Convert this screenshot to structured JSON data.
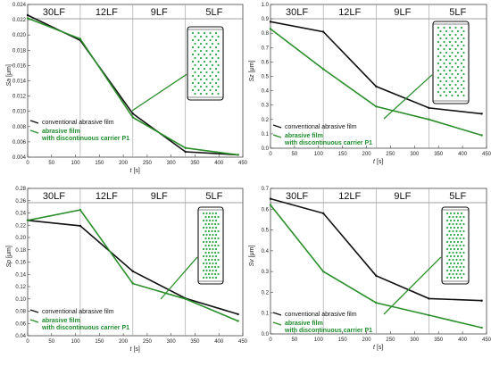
{
  "colors": {
    "conventional": "#111111",
    "p1": "#2a8f2a",
    "dot": "#2fa84a",
    "frame": "#444444",
    "stage_line": "#9a9a9a"
  },
  "chart_data": [
    {
      "id": "sa",
      "type": "line",
      "ylabel_var": "Sa",
      "ylabel_unit": "[μm]",
      "xlabel_var": "t",
      "xlabel_unit": "[s]",
      "xlim": [
        0,
        450
      ],
      "ylim": [
        0.004,
        0.024
      ],
      "xticks": [
        "0",
        "50",
        "100",
        "150",
        "200",
        "250",
        "300",
        "350",
        "400",
        "450"
      ],
      "yticks": [
        "0.004",
        "0.006",
        "0.008",
        "0.010",
        "0.012",
        "0.014",
        "0.016",
        "0.018",
        "0.020",
        "0.022",
        "0.024"
      ],
      "stages": [
        "30LF",
        "12LF",
        "9LF",
        "5LF"
      ],
      "stage_bounds": [
        0,
        110,
        220,
        330,
        450
      ],
      "legend_conventional": "conventional abrasive film",
      "legend_p1_line1": "abrasive film",
      "legend_p1_line2": "with discontinuous carrier P1",
      "series": [
        {
          "key": "conventional",
          "x": [
            0,
            110,
            220,
            330,
            440
          ],
          "y": [
            0.0226,
            0.0193,
            0.0097,
            0.0047,
            0.0043
          ]
        },
        {
          "key": "p1",
          "x": [
            0,
            110,
            220,
            330,
            440
          ],
          "y": [
            0.0222,
            0.0195,
            0.0092,
            0.0052,
            0.0043
          ]
        }
      ]
    },
    {
      "id": "sz",
      "type": "line",
      "ylabel_var": "Sz",
      "ylabel_unit": "[μm]",
      "xlabel_var": "t",
      "xlabel_unit": "[s]",
      "xlim": [
        0,
        450
      ],
      "ylim": [
        0,
        1.0
      ],
      "xticks": [
        "0",
        "50",
        "100",
        "150",
        "200",
        "250",
        "300",
        "350",
        "400",
        "450"
      ],
      "yticks": [
        "0.0",
        "0.1",
        "0.2",
        "0.3",
        "0.4",
        "0.5",
        "0.6",
        "0.7",
        "0.8",
        "0.9",
        "1.0"
      ],
      "stages": [
        "30LF",
        "12LF",
        "9LF",
        "5LF"
      ],
      "stage_bounds": [
        0,
        110,
        220,
        330,
        450
      ],
      "legend_conventional": "conventional abrasive film",
      "legend_p1_line1": "abrasive film",
      "legend_p1_line2": "with discontinuous carrier P1",
      "series": [
        {
          "key": "conventional",
          "x": [
            0,
            110,
            220,
            330,
            440
          ],
          "y": [
            0.88,
            0.81,
            0.43,
            0.28,
            0.24
          ]
        },
        {
          "key": "p1",
          "x": [
            0,
            110,
            220,
            330,
            440
          ],
          "y": [
            0.83,
            0.55,
            0.29,
            0.2,
            0.09
          ]
        }
      ]
    },
    {
      "id": "sp",
      "type": "line",
      "ylabel_var": "Sp",
      "ylabel_unit": "[μm]",
      "xlabel_var": "t",
      "xlabel_unit": "[s]",
      "xlim": [
        0,
        450
      ],
      "ylim": [
        0.04,
        0.28
      ],
      "xticks": [
        "0",
        "50",
        "100",
        "150",
        "200",
        "250",
        "300",
        "350",
        "400",
        "450"
      ],
      "yticks": [
        "0.04",
        "0.06",
        "0.08",
        "0.10",
        "0.12",
        "0.14",
        "0.16",
        "0.18",
        "0.20",
        "0.22",
        "0.24",
        "0.26",
        "0.28"
      ],
      "stages": [
        "30LF",
        "12LF",
        "9LF",
        "5LF"
      ],
      "stage_bounds": [
        0,
        110,
        220,
        330,
        450
      ],
      "legend_conventional": "conventional abrasive film",
      "legend_p1_line1": "abrasive film",
      "legend_p1_line2": "with discontinuous carrier P1",
      "series": [
        {
          "key": "conventional",
          "x": [
            0,
            110,
            220,
            330,
            440
          ],
          "y": [
            0.228,
            0.219,
            0.145,
            0.101,
            0.075
          ]
        },
        {
          "key": "p1",
          "x": [
            0,
            110,
            220,
            330,
            440
          ],
          "y": [
            0.228,
            0.245,
            0.125,
            0.1,
            0.064
          ]
        }
      ]
    },
    {
      "id": "sv",
      "type": "line",
      "ylabel_var": "Sv",
      "ylabel_unit": "[μm]",
      "xlabel_var": "t",
      "xlabel_unit": "[s]",
      "xlim": [
        0,
        450
      ],
      "ylim": [
        0,
        0.7
      ],
      "xticks": [
        "0",
        "50",
        "100",
        "150",
        "200",
        "250",
        "300",
        "350",
        "400",
        "450"
      ],
      "yticks": [
        "0.0",
        "0.1",
        "0.2",
        "0.3",
        "0.4",
        "0.5",
        "0.6",
        "0.7"
      ],
      "stages": [
        "30LF",
        "12LF",
        "9LF",
        "5LF"
      ],
      "stage_bounds": [
        0,
        110,
        220,
        330,
        450
      ],
      "legend_conventional": "conventional abrasive film",
      "legend_p1_line1": "abrasive film",
      "legend_p1_line2": "with discontinuous carrier P1",
      "series": [
        {
          "key": "conventional",
          "x": [
            0,
            110,
            220,
            330,
            440
          ],
          "y": [
            0.65,
            0.58,
            0.28,
            0.17,
            0.16
          ]
        },
        {
          "key": "p1",
          "x": [
            0,
            110,
            220,
            330,
            440
          ],
          "y": [
            0.62,
            0.3,
            0.15,
            0.09,
            0.03
          ]
        }
      ]
    }
  ]
}
